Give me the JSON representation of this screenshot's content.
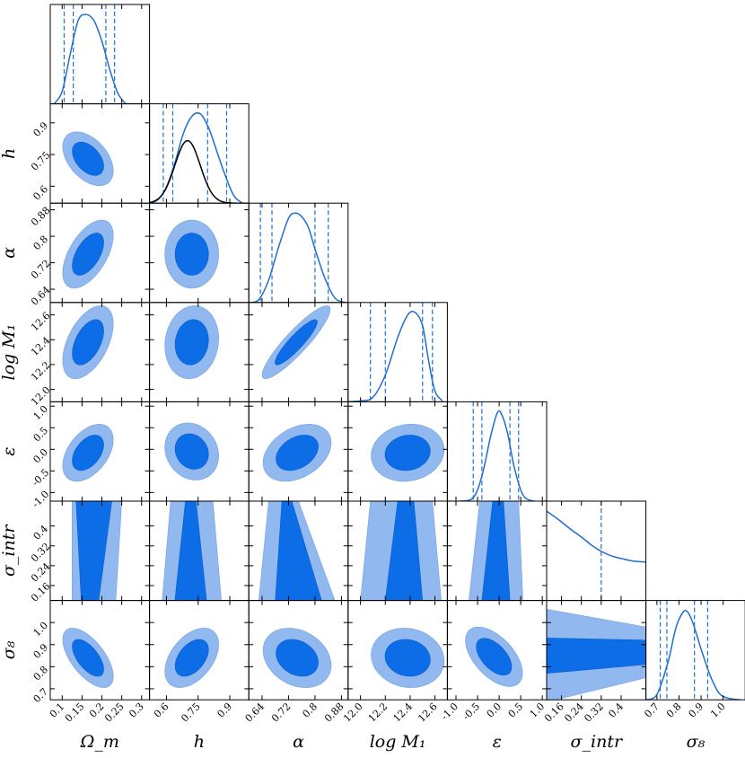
{
  "chart_data": {
    "type": "corner",
    "params": [
      {
        "key": "Om",
        "label": "Ω_m",
        "axis_range": [
          0.07,
          0.32
        ],
        "ticks": [
          0.1,
          0.15,
          0.2,
          0.25,
          0.3
        ],
        "tick_labels": [
          "0.1",
          "0.15",
          "0.2",
          "0.25",
          "0.3"
        ],
        "quantiles": [
          0.105,
          0.128,
          0.21,
          0.232
        ]
      },
      {
        "key": "h",
        "label": "h",
        "axis_range": [
          0.52,
          0.99
        ],
        "ticks": [
          0.6,
          0.75,
          0.9
        ],
        "tick_labels": [
          "0.6",
          "0.75",
          "0.9"
        ],
        "quantiles": [
          0.585,
          0.63,
          0.795,
          0.885
        ]
      },
      {
        "key": "alpha",
        "label": "α",
        "axis_range": [
          0.6,
          0.9
        ],
        "ticks": [
          0.64,
          0.72,
          0.8,
          0.88
        ],
        "tick_labels": [
          "0.64",
          "0.72",
          "0.8",
          "0.88"
        ],
        "quantiles": [
          0.635,
          0.67,
          0.8,
          0.84
        ]
      },
      {
        "key": "logM1",
        "label": "log M₁",
        "axis_range": [
          11.9,
          12.7
        ],
        "ticks": [
          12.0,
          12.2,
          12.4,
          12.6
        ],
        "tick_labels": [
          "12.0",
          "12.2",
          "12.4",
          "12.6"
        ],
        "quantiles": [
          12.08,
          12.2,
          12.5,
          12.58
        ]
      },
      {
        "key": "eps",
        "label": "ε",
        "axis_range": [
          -1.2,
          1.1
        ],
        "ticks": [
          -1.0,
          -0.5,
          0.0,
          0.5,
          1.0
        ],
        "tick_labels": [
          "-1.0",
          "-0.5",
          "0.0",
          "0.5",
          "1.0"
        ],
        "quantiles": [
          -0.6,
          -0.4,
          0.25,
          0.45
        ]
      },
      {
        "key": "sigint",
        "label": "σ_intr",
        "axis_range": [
          0.1,
          0.5
        ],
        "ticks": [
          0.16,
          0.24,
          0.32,
          0.4
        ],
        "tick_labels": [
          "0.16",
          "0.24",
          "0.32",
          "0.4"
        ],
        "quantiles": [
          0.32
        ]
      },
      {
        "key": "s8",
        "label": "σ₈",
        "axis_range": [
          0.65,
          1.1
        ],
        "ticks": [
          0.7,
          0.8,
          0.9,
          1.0
        ],
        "tick_labels": [
          "0.7",
          "0.8",
          "0.9",
          "1.0"
        ],
        "quantiles": [
          0.715,
          0.745,
          0.87,
          0.93
        ]
      }
    ],
    "marginals": [
      {
        "param": "Om",
        "x": [
          0.08,
          0.1,
          0.12,
          0.14,
          0.16,
          0.18,
          0.2,
          0.22,
          0.24,
          0.26
        ],
        "y": [
          0.0,
          0.14,
          0.55,
          0.93,
          1.0,
          0.93,
          0.7,
          0.38,
          0.12,
          0.0
        ]
      },
      {
        "param": "h",
        "x": [
          0.52,
          0.56,
          0.6,
          0.64,
          0.68,
          0.72,
          0.76,
          0.8,
          0.84,
          0.88,
          0.92,
          0.96
        ],
        "y": [
          0.0,
          0.04,
          0.18,
          0.45,
          0.78,
          0.97,
          1.0,
          0.84,
          0.57,
          0.3,
          0.08,
          0.0
        ]
      },
      {
        "param": "alpha",
        "x": [
          0.6,
          0.63,
          0.66,
          0.69,
          0.72,
          0.74,
          0.76,
          0.78,
          0.8,
          0.83,
          0.86,
          0.89
        ],
        "y": [
          0.0,
          0.03,
          0.25,
          0.62,
          0.94,
          1.0,
          0.96,
          0.84,
          0.6,
          0.27,
          0.05,
          0.0
        ]
      },
      {
        "param": "logM1",
        "x": [
          11.9,
          12.0,
          12.1,
          12.2,
          12.3,
          12.38,
          12.44,
          12.5,
          12.55,
          12.6,
          12.66
        ],
        "y": [
          0.0,
          0.01,
          0.05,
          0.3,
          0.72,
          0.97,
          1.0,
          0.85,
          0.45,
          0.12,
          0.01
        ]
      },
      {
        "param": "eps",
        "x": [
          -1.2,
          -0.9,
          -0.6,
          -0.4,
          -0.2,
          -0.05,
          0.05,
          0.2,
          0.35,
          0.55,
          0.8,
          1.1
        ],
        "y": [
          0.0,
          0.0,
          0.04,
          0.28,
          0.72,
          0.98,
          0.98,
          0.75,
          0.38,
          0.07,
          0.0,
          0.0
        ]
      },
      {
        "param": "sigint",
        "x": [
          0.1,
          0.15,
          0.2,
          0.24,
          0.28,
          0.32,
          0.36,
          0.4,
          0.45,
          0.5
        ],
        "y": [
          1.0,
          0.9,
          0.79,
          0.71,
          0.62,
          0.55,
          0.5,
          0.47,
          0.44,
          0.43
        ]
      },
      {
        "param": "s8",
        "x": [
          0.65,
          0.7,
          0.75,
          0.78,
          0.8,
          0.83,
          0.86,
          0.9,
          0.94,
          0.98,
          1.02,
          1.08
        ],
        "y": [
          0.0,
          0.06,
          0.42,
          0.75,
          0.9,
          1.0,
          0.88,
          0.57,
          0.28,
          0.08,
          0.02,
          0.0
        ]
      }
    ],
    "h_prior": {
      "mean": 0.7,
      "sd": 0.06,
      "peak": 0.7
    },
    "joint": [
      {
        "x": "Om",
        "y": "h",
        "mx": 0.165,
        "my": 0.73,
        "sx": 0.026,
        "sy": 0.052,
        "rho": -0.45
      },
      {
        "x": "Om",
        "y": "alpha",
        "mx": 0.165,
        "my": 0.746,
        "sx": 0.026,
        "sy": 0.042,
        "rho": 0.55
      },
      {
        "x": "Om",
        "y": "logM1",
        "mx": 0.165,
        "my": 12.38,
        "sx": 0.026,
        "sy": 0.12,
        "rho": 0.5
      },
      {
        "x": "Om",
        "y": "eps",
        "mx": 0.165,
        "my": -0.08,
        "sx": 0.026,
        "sy": 0.27,
        "rho": 0.45
      },
      {
        "x": "Om",
        "y": "s8",
        "mx": 0.165,
        "my": 0.84,
        "sx": 0.026,
        "sy": 0.055,
        "rho": -0.62
      },
      {
        "x": "h",
        "y": "alpha",
        "mx": 0.72,
        "my": 0.746,
        "sx": 0.052,
        "sy": 0.042,
        "rho": 0.0
      },
      {
        "x": "h",
        "y": "logM1",
        "mx": 0.72,
        "my": 12.38,
        "sx": 0.052,
        "sy": 0.12,
        "rho": 0.1
      },
      {
        "x": "h",
        "y": "eps",
        "mx": 0.72,
        "my": -0.05,
        "sx": 0.052,
        "sy": 0.27,
        "rho": -0.15
      },
      {
        "x": "h",
        "y": "s8",
        "mx": 0.72,
        "my": 0.84,
        "sx": 0.052,
        "sy": 0.055,
        "rho": 0.45
      },
      {
        "x": "alpha",
        "y": "logM1",
        "mx": 0.743,
        "my": 12.38,
        "sx": 0.042,
        "sy": 0.12,
        "rho": 0.9
      },
      {
        "x": "alpha",
        "y": "eps",
        "mx": 0.746,
        "my": -0.08,
        "sx": 0.042,
        "sy": 0.27,
        "rho": 0.35
      },
      {
        "x": "alpha",
        "y": "s8",
        "mx": 0.746,
        "my": 0.84,
        "sx": 0.042,
        "sy": 0.055,
        "rho": -0.25
      },
      {
        "x": "logM1",
        "y": "eps",
        "mx": 12.38,
        "my": -0.08,
        "sx": 0.12,
        "sy": 0.27,
        "rho": 0.1
      },
      {
        "x": "logM1",
        "y": "s8",
        "mx": 12.38,
        "my": 0.84,
        "sx": 0.12,
        "sy": 0.055,
        "rho": -0.1
      },
      {
        "x": "eps",
        "y": "s8",
        "mx": -0.12,
        "my": 0.845,
        "sx": 0.27,
        "sy": 0.055,
        "rho": -0.55
      },
      {
        "x": "Om",
        "y": "sigint",
        "band": true
      },
      {
        "x": "h",
        "y": "sigint",
        "band": true
      },
      {
        "x": "alpha",
        "y": "sigint",
        "band": true
      },
      {
        "x": "logM1",
        "y": "sigint",
        "band": true
      },
      {
        "x": "eps",
        "y": "sigint",
        "band": true
      },
      {
        "x": "sigint",
        "y": "s8",
        "hband": true
      }
    ],
    "sigint_bands": [
      {
        "x": "Om",
        "outer": [
          [
            0.125,
            0.235
          ],
          [
            0.125,
            0.25
          ]
        ],
        "inner": [
          [
            0.148,
            0.192
          ],
          [
            0.135,
            0.225
          ]
        ]
      },
      {
        "x": "h",
        "outer": [
          [
            0.58,
            0.86
          ],
          [
            0.62,
            0.82
          ]
        ],
        "inner": [
          [
            0.64,
            0.79
          ],
          [
            0.69,
            0.74
          ]
        ]
      },
      {
        "x": "alpha",
        "outer": [
          [
            0.63,
            0.86
          ],
          [
            0.66,
            0.75
          ]
        ],
        "inner": [
          [
            0.68,
            0.82
          ],
          [
            0.7,
            0.73
          ]
        ]
      },
      {
        "x": "logM1",
        "outer": [
          [
            12.0,
            12.65
          ],
          [
            12.08,
            12.58
          ]
        ],
        "inner": [
          [
            12.2,
            12.5
          ],
          [
            12.3,
            12.43
          ]
        ]
      },
      {
        "x": "eps",
        "outer": [
          [
            -0.7,
            0.55
          ],
          [
            -0.45,
            0.45
          ]
        ],
        "inner": [
          [
            -0.4,
            0.25
          ],
          [
            -0.15,
            0.1
          ]
        ]
      }
    ],
    "s8_band": {
      "outer": [
        [
          0.64,
          1.06
        ],
        [
          0.75,
          0.98
        ]
      ],
      "inner": [
        [
          0.77,
          0.93
        ],
        [
          0.81,
          0.92
        ]
      ]
    },
    "grid": false,
    "legend": "none",
    "colors": {
      "contour_68": "#0c6de6",
      "contour_95": "#92b9ef",
      "marginal": "#1f6fcc",
      "prior": "#000000"
    }
  }
}
